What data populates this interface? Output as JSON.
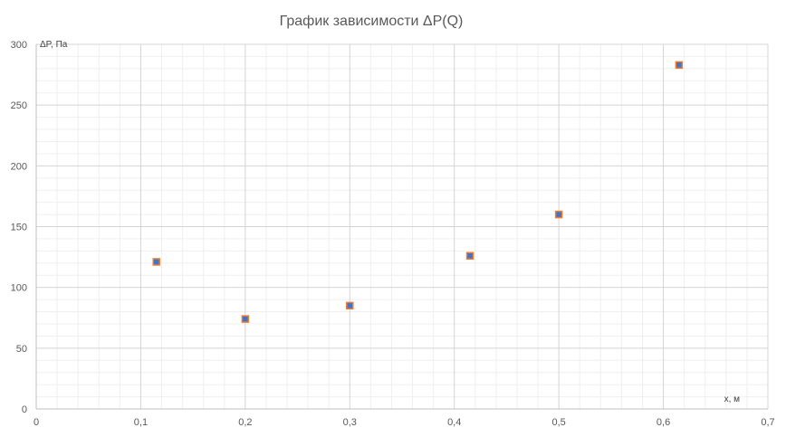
{
  "chart_data": {
    "type": "scatter",
    "title": "График зависимости ΔP(Q)",
    "xlabel": "x, м",
    "ylabel": "ΔP, Па",
    "xlim": [
      0,
      0.7
    ],
    "ylim": [
      0,
      300
    ],
    "x_ticks": [
      "0",
      "0,1",
      "0,2",
      "0,3",
      "0,4",
      "0,5",
      "0,6",
      "0,7"
    ],
    "y_ticks": [
      "0",
      "50",
      "100",
      "150",
      "200",
      "250",
      "300"
    ],
    "grid": true,
    "legend": "none",
    "series": [
      {
        "x": [
          0.115,
          0.2,
          0.3,
          0.415,
          0.5,
          0.615
        ],
        "y": [
          121,
          74,
          85,
          126,
          160,
          283
        ],
        "colors": {
          "fill": "#4472C4",
          "stroke": "#ED7D31"
        }
      }
    ]
  }
}
